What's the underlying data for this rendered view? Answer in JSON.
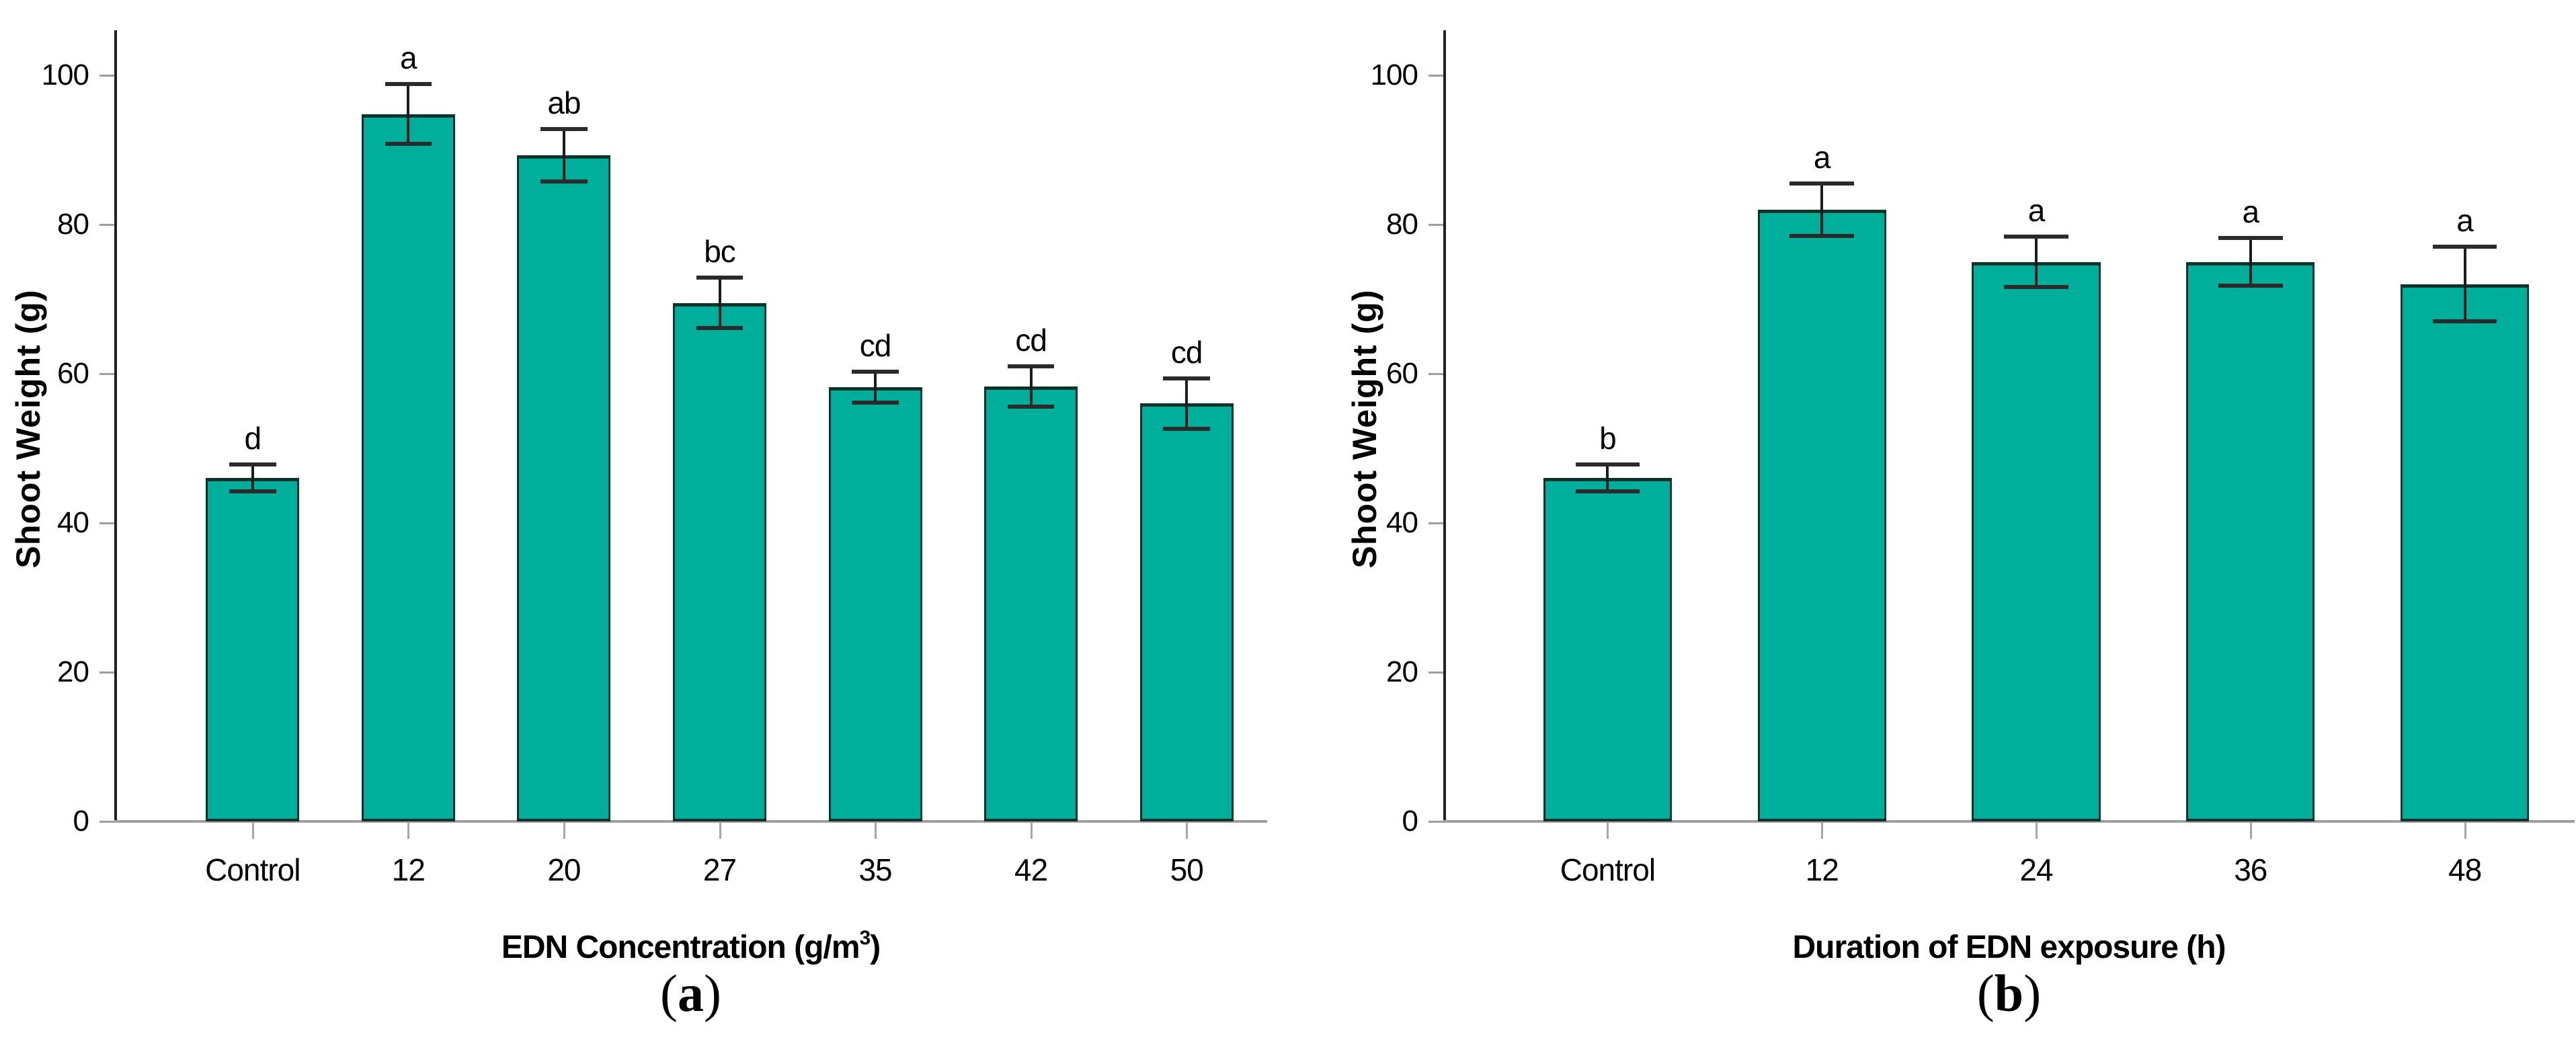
{
  "chart_data": [
    {
      "type": "bar",
      "panel": "a",
      "ylabel": "Shoot Weight (g)",
      "xlabel_prefix": "EDN Concentration (g/m",
      "xlabel_sup": "3",
      "xlabel_suffix": ")",
      "caption_open": "(",
      "caption_letter": "a",
      "caption_close": ")",
      "categories": [
        "Control",
        "12",
        "20",
        "27",
        "35",
        "42",
        "50"
      ],
      "values": [
        46,
        94.8,
        89.3,
        69.5,
        58.2,
        58.3,
        56
      ],
      "errors": [
        1.8,
        4.0,
        3.5,
        3.4,
        2.1,
        2.7,
        3.4
      ],
      "sig_letters": [
        "d",
        "a",
        "ab",
        "bc",
        "cd",
        "cd",
        "cd"
      ],
      "ylim": [
        0,
        100
      ],
      "yticks": [
        0,
        20,
        40,
        60,
        80,
        100
      ],
      "grid": false,
      "legend": null,
      "bar_color": "#00ae9c",
      "bar_edge_color": "#0d332d",
      "axis_color": "#212121",
      "baseline_color": "#9e9e9e"
    },
    {
      "type": "bar",
      "panel": "b",
      "ylabel": "Shoot Weight (g)",
      "xlabel_prefix": "Duration of EDN exposure (h)",
      "xlabel_sup": "",
      "xlabel_suffix": "",
      "caption_open": "(",
      "caption_letter": "b",
      "caption_close": ")",
      "categories": [
        "Control",
        "12",
        "24",
        "36",
        "48"
      ],
      "values": [
        46,
        82,
        75,
        75,
        72
      ],
      "errors": [
        1.8,
        3.5,
        3.4,
        3.2,
        5.0
      ],
      "sig_letters": [
        "b",
        "a",
        "a",
        "a",
        "a"
      ],
      "ylim": [
        0,
        100
      ],
      "yticks": [
        0,
        20,
        40,
        60,
        80,
        100
      ],
      "grid": false,
      "legend": null,
      "bar_color": "#00ae9c",
      "bar_edge_color": "#0d332d",
      "axis_color": "#212121",
      "baseline_color": "#9e9e9e"
    }
  ]
}
